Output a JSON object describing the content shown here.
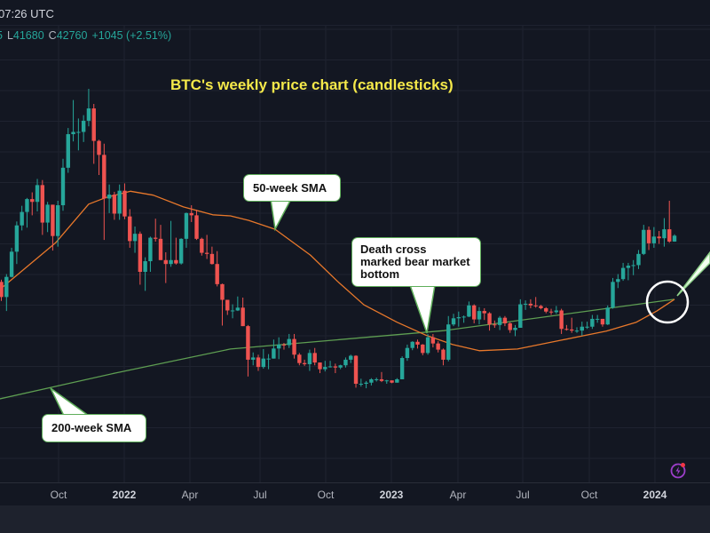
{
  "header": {
    "time": "07:26 UTC"
  },
  "legend": {
    "fragment": "5",
    "low_label": "L",
    "low": "41680",
    "close_label": "C",
    "close": "42760",
    "change": "+1045 (+2.51%)"
  },
  "annotations": {
    "title": "BTC's weekly price chart (candlesticks)",
    "sma50": "50-week SMA",
    "sma200": "200-week SMA",
    "death_cross_1": "Death cross",
    "death_cross_2": "marked bear market",
    "death_cross_3": "bottom"
  },
  "icons": {
    "alert": "lightning-bolt-icon"
  },
  "chart_data": {
    "type": "candlestick",
    "title": "BTC's weekly price chart (candlesticks)",
    "x_tick_labels": [
      "Oct",
      "2022",
      "Apr",
      "Jul",
      "Oct",
      "2023",
      "Apr",
      "Jul",
      "Oct",
      "2024"
    ],
    "grid": true,
    "colors": {
      "up": "#26a69a",
      "down": "#ef5350",
      "sma50": "#e8782b",
      "sma200": "#5e9e52"
    },
    "candles_fields": [
      "week",
      "open",
      "high",
      "low",
      "close"
    ],
    "candles": [
      [
        "2021-07-12",
        34500,
        34900,
        31100,
        31800
      ],
      [
        "2021-07-19",
        31800,
        35900,
        29300,
        35400
      ],
      [
        "2021-07-26",
        35400,
        40600,
        35300,
        39900
      ],
      [
        "2021-08-02",
        39900,
        45300,
        37700,
        44600
      ],
      [
        "2021-08-09",
        44600,
        48100,
        43700,
        47000
      ],
      [
        "2021-08-16",
        47000,
        49500,
        44200,
        49300
      ],
      [
        "2021-08-23",
        49300,
        50500,
        46400,
        48800
      ],
      [
        "2021-08-30",
        48800,
        52900,
        47100,
        51800
      ],
      [
        "2021-09-06",
        51800,
        52700,
        42900,
        45100
      ],
      [
        "2021-09-13",
        45100,
        48800,
        43400,
        48300
      ],
      [
        "2021-09-20",
        48300,
        48300,
        40100,
        42700
      ],
      [
        "2021-09-27",
        42700,
        49000,
        40800,
        48200
      ],
      [
        "2021-10-04",
        48200,
        56500,
        47200,
        54900
      ],
      [
        "2021-10-11",
        54900,
        62000,
        54000,
        60900
      ],
      [
        "2021-10-18",
        60900,
        67000,
        59600,
        61300
      ],
      [
        "2021-10-25",
        61300,
        63700,
        58000,
        61300
      ],
      [
        "2021-11-01",
        61300,
        64300,
        59500,
        63300
      ],
      [
        "2021-11-08",
        63300,
        69000,
        62300,
        65500
      ],
      [
        "2021-11-15",
        65500,
        66300,
        55600,
        59700
      ],
      [
        "2021-11-22",
        59700,
        59900,
        53600,
        57200
      ],
      [
        "2021-11-29",
        57200,
        59200,
        42000,
        49400
      ],
      [
        "2021-12-06",
        49400,
        51900,
        46800,
        50100
      ],
      [
        "2021-12-13",
        50100,
        50600,
        45600,
        46700
      ],
      [
        "2021-12-20",
        46700,
        51900,
        45600,
        50800
      ],
      [
        "2021-12-27",
        50800,
        52100,
        45700,
        46200
      ],
      [
        "2022-01-03",
        46200,
        47500,
        40600,
        41800
      ],
      [
        "2022-01-10",
        41800,
        44400,
        39700,
        43100
      ],
      [
        "2022-01-17",
        43100,
        43500,
        34000,
        36300
      ],
      [
        "2022-01-24",
        36300,
        38900,
        32900,
        38200
      ],
      [
        "2022-01-31",
        38200,
        42600,
        36300,
        42400
      ],
      [
        "2022-02-07",
        42400,
        45800,
        41700,
        42200
      ],
      [
        "2022-02-14",
        42200,
        44700,
        38400,
        38400
      ],
      [
        "2022-02-21",
        38400,
        39800,
        34300,
        37700
      ],
      [
        "2022-02-28",
        37700,
        45400,
        37200,
        38400
      ],
      [
        "2022-03-07",
        38400,
        42400,
        37600,
        37800
      ],
      [
        "2022-03-14",
        37800,
        42300,
        37600,
        42200
      ],
      [
        "2022-03-21",
        42200,
        46900,
        40600,
        46800
      ],
      [
        "2022-03-28",
        46800,
        48200,
        45200,
        46400
      ],
      [
        "2022-04-04",
        46400,
        47400,
        42000,
        42200
      ],
      [
        "2022-04-11",
        42200,
        42400,
        39200,
        39700
      ],
      [
        "2022-04-18",
        39700,
        42900,
        38600,
        39500
      ],
      [
        "2022-04-25",
        39500,
        40800,
        37600,
        37700
      ],
      [
        "2022-05-02",
        37700,
        40000,
        33700,
        34100
      ],
      [
        "2022-05-09",
        34100,
        34200,
        26700,
        31300
      ],
      [
        "2022-05-16",
        31300,
        31300,
        28600,
        29400
      ],
      [
        "2022-05-23",
        29400,
        30500,
        28000,
        29400
      ],
      [
        "2022-05-30",
        29400,
        31900,
        29300,
        29900
      ],
      [
        "2022-06-06",
        29900,
        31700,
        26600,
        26600
      ],
      [
        "2022-06-13",
        26600,
        26800,
        17600,
        20600
      ],
      [
        "2022-06-20",
        20600,
        21900,
        19600,
        21000
      ],
      [
        "2022-06-27",
        21000,
        21500,
        18600,
        19300
      ],
      [
        "2022-07-04",
        19300,
        22500,
        19000,
        20800
      ],
      [
        "2022-07-11",
        20800,
        21600,
        18900,
        20800
      ],
      [
        "2022-07-18",
        20800,
        24200,
        20800,
        22600
      ],
      [
        "2022-07-25",
        22600,
        24600,
        20700,
        23300
      ],
      [
        "2022-08-01",
        23300,
        23600,
        22400,
        23200
      ],
      [
        "2022-08-08",
        23200,
        25200,
        22700,
        24300
      ],
      [
        "2022-08-15",
        24300,
        25200,
        20800,
        21500
      ],
      [
        "2022-08-22",
        21500,
        21800,
        19600,
        20000
      ],
      [
        "2022-08-29",
        20000,
        20600,
        19500,
        19800
      ],
      [
        "2022-09-05",
        19800,
        22400,
        18600,
        21800
      ],
      [
        "2022-09-12",
        21800,
        22700,
        19600,
        20100
      ],
      [
        "2022-09-19",
        20100,
        20100,
        18200,
        18900
      ],
      [
        "2022-09-26",
        18900,
        20400,
        18500,
        19300
      ],
      [
        "2022-10-03",
        19300,
        20400,
        19200,
        19400
      ],
      [
        "2022-10-10",
        19400,
        19900,
        18200,
        19200
      ],
      [
        "2022-10-17",
        19200,
        19700,
        18900,
        19600
      ],
      [
        "2022-10-24",
        19600,
        21000,
        19200,
        20600
      ],
      [
        "2022-10-31",
        20600,
        21500,
        20000,
        21300
      ],
      [
        "2022-11-07",
        21300,
        21400,
        15600,
        16300
      ],
      [
        "2022-11-14",
        16300,
        17200,
        15800,
        16300
      ],
      [
        "2022-11-21",
        16300,
        16800,
        15500,
        16500
      ],
      [
        "2022-11-28",
        16500,
        17300,
        16000,
        17100
      ],
      [
        "2022-12-05",
        17100,
        17400,
        16700,
        17100
      ],
      [
        "2022-12-12",
        17100,
        18400,
        16600,
        16800
      ],
      [
        "2022-12-19",
        16800,
        17000,
        16300,
        16900
      ],
      [
        "2022-12-26",
        16900,
        16900,
        16400,
        16500
      ],
      [
        "2023-01-02",
        16500,
        17300,
        16500,
        17100
      ],
      [
        "2023-01-09",
        17100,
        21200,
        17100,
        20900
      ],
      [
        "2023-01-16",
        20900,
        23300,
        20400,
        22700
      ],
      [
        "2023-01-23",
        22700,
        23900,
        22300,
        23800
      ],
      [
        "2023-01-30",
        23800,
        24200,
        22600,
        23300
      ],
      [
        "2023-02-06",
        23300,
        23400,
        21400,
        21800
      ],
      [
        "2023-02-13",
        21800,
        25200,
        21500,
        24600
      ],
      [
        "2023-02-20",
        24600,
        25200,
        22800,
        23500
      ],
      [
        "2023-02-27",
        23500,
        23900,
        21900,
        22400
      ],
      [
        "2023-03-06",
        22400,
        22600,
        19600,
        20600
      ],
      [
        "2023-03-13",
        20600,
        28400,
        20300,
        26900
      ],
      [
        "2023-03-20",
        26900,
        28800,
        26600,
        28000
      ],
      [
        "2023-03-27",
        28000,
        29200,
        26500,
        28200
      ],
      [
        "2023-04-03",
        28200,
        28500,
        27200,
        28300
      ],
      [
        "2023-04-10",
        28300,
        31000,
        28200,
        30300
      ],
      [
        "2023-04-17",
        30300,
        30500,
        27100,
        27800
      ],
      [
        "2023-04-24",
        27800,
        30000,
        26900,
        29300
      ],
      [
        "2023-05-01",
        29300,
        29800,
        27700,
        28900
      ],
      [
        "2023-05-08",
        28900,
        29100,
        25800,
        26900
      ],
      [
        "2023-05-15",
        26900,
        27600,
        26300,
        26800
      ],
      [
        "2023-05-22",
        26800,
        28400,
        25900,
        28100
      ],
      [
        "2023-05-29",
        28100,
        28400,
        26600,
        27100
      ],
      [
        "2023-06-05",
        27100,
        27300,
        25400,
        25900
      ],
      [
        "2023-06-12",
        25900,
        26800,
        24800,
        26300
      ],
      [
        "2023-06-19",
        26300,
        31400,
        26300,
        30500
      ],
      [
        "2023-06-26",
        30500,
        31200,
        29500,
        30600
      ],
      [
        "2023-07-03",
        30600,
        31400,
        29800,
        30300
      ],
      [
        "2023-07-10",
        30300,
        31800,
        29900,
        30200
      ],
      [
        "2023-07-17",
        30200,
        30400,
        29600,
        29800
      ],
      [
        "2023-07-24",
        29800,
        30000,
        28900,
        29200
      ],
      [
        "2023-07-31",
        29200,
        29700,
        28600,
        29100
      ],
      [
        "2023-08-07",
        29100,
        30200,
        28800,
        29400
      ],
      [
        "2023-08-14",
        29400,
        29700,
        25200,
        26100
      ],
      [
        "2023-08-21",
        26100,
        26800,
        25800,
        26000
      ],
      [
        "2023-08-28",
        26000,
        28100,
        25400,
        25800
      ],
      [
        "2023-09-04",
        25800,
        26400,
        25400,
        25800
      ],
      [
        "2023-09-11",
        25800,
        27400,
        24900,
        26500
      ],
      [
        "2023-09-18",
        26500,
        27400,
        26100,
        26500
      ],
      [
        "2023-09-25",
        26500,
        28600,
        26100,
        27900
      ],
      [
        "2023-10-02",
        27900,
        28600,
        27200,
        27900
      ],
      [
        "2023-10-09",
        27900,
        27900,
        26500,
        26900
      ],
      [
        "2023-10-16",
        26900,
        30300,
        26800,
        29900
      ],
      [
        "2023-10-23",
        29900,
        35200,
        29700,
        34500
      ],
      [
        "2023-10-30",
        34500,
        35900,
        33400,
        35000
      ],
      [
        "2023-11-06",
        35000,
        37900,
        34700,
        37000
      ],
      [
        "2023-11-13",
        37000,
        37900,
        34800,
        37400
      ],
      [
        "2023-11-20",
        37400,
        38400,
        35700,
        37500
      ],
      [
        "2023-11-27",
        37500,
        40200,
        36800,
        39500
      ],
      [
        "2023-12-04",
        39500,
        44700,
        39300,
        43800
      ],
      [
        "2023-12-11",
        43800,
        44400,
        40200,
        41400
      ],
      [
        "2023-12-18",
        41400,
        44300,
        40600,
        42600
      ],
      [
        "2023-12-25",
        42600,
        43600,
        41300,
        42300
      ],
      [
        "2024-01-01",
        42300,
        45900,
        40800,
        43900
      ],
      [
        "2024-01-08",
        43900,
        49000,
        41500,
        41715
      ],
      [
        "2024-01-15",
        41715,
        43000,
        41680,
        42760
      ]
    ],
    "sma50": [
      [
        "2021-07-14",
        33600
      ],
      [
        "2021-09-24",
        41500
      ],
      [
        "2021-11-08",
        48400
      ],
      [
        "2021-12-02",
        49600
      ],
      [
        "2022-01-04",
        50700
      ],
      [
        "2022-02-04",
        50000
      ],
      [
        "2022-03-17",
        47900
      ],
      [
        "2022-04-26",
        46500
      ],
      [
        "2022-05-20",
        46300
      ],
      [
        "2022-06-14",
        45500
      ],
      [
        "2022-07-20",
        43900
      ],
      [
        "2022-09-06",
        39300
      ],
      [
        "2022-10-13",
        34600
      ],
      [
        "2022-11-18",
        30400
      ],
      [
        "2023-01-02",
        27300
      ],
      [
        "2023-02-10",
        25000
      ],
      [
        "2023-03-19",
        23300
      ],
      [
        "2023-04-24",
        22200
      ],
      [
        "2023-06-15",
        22500
      ],
      [
        "2023-08-14",
        24100
      ],
      [
        "2023-10-14",
        25700
      ],
      [
        "2023-11-24",
        27300
      ],
      [
        "2023-12-22",
        29300
      ],
      [
        "2024-01-15",
        31400
      ]
    ],
    "sma200": [
      [
        "2021-07-10",
        13600
      ],
      [
        "2021-12-14",
        18200
      ],
      [
        "2022-05-20",
        22500
      ],
      [
        "2023-03-07",
        25800
      ],
      [
        "2024-01-15",
        31400
      ]
    ]
  }
}
